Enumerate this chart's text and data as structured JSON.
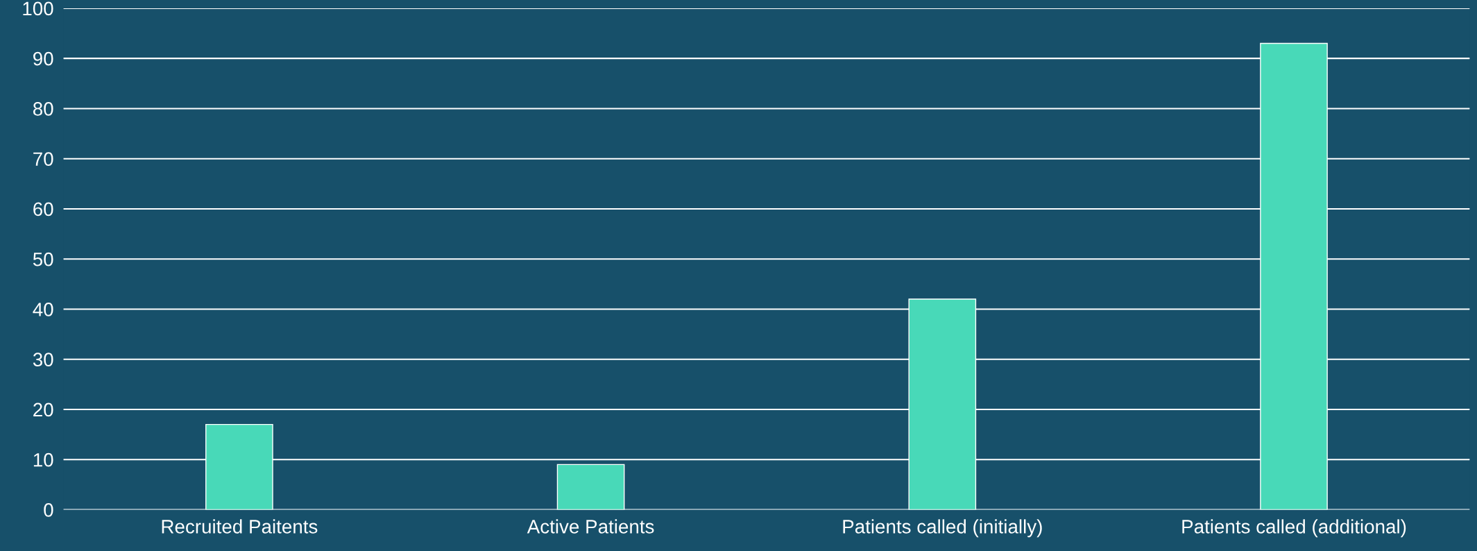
{
  "chart_data": {
    "type": "bar",
    "categories": [
      "Recruited Paitents",
      "Active Patients",
      "Patients called (initially)",
      "Patients called (additional)"
    ],
    "values": [
      17,
      9,
      42,
      93
    ],
    "color": "#48d9b8",
    "ylim": [
      0,
      100
    ],
    "yticks": [
      0,
      10,
      20,
      30,
      40,
      50,
      60,
      70,
      80,
      90,
      100
    ],
    "grid": "y"
  }
}
